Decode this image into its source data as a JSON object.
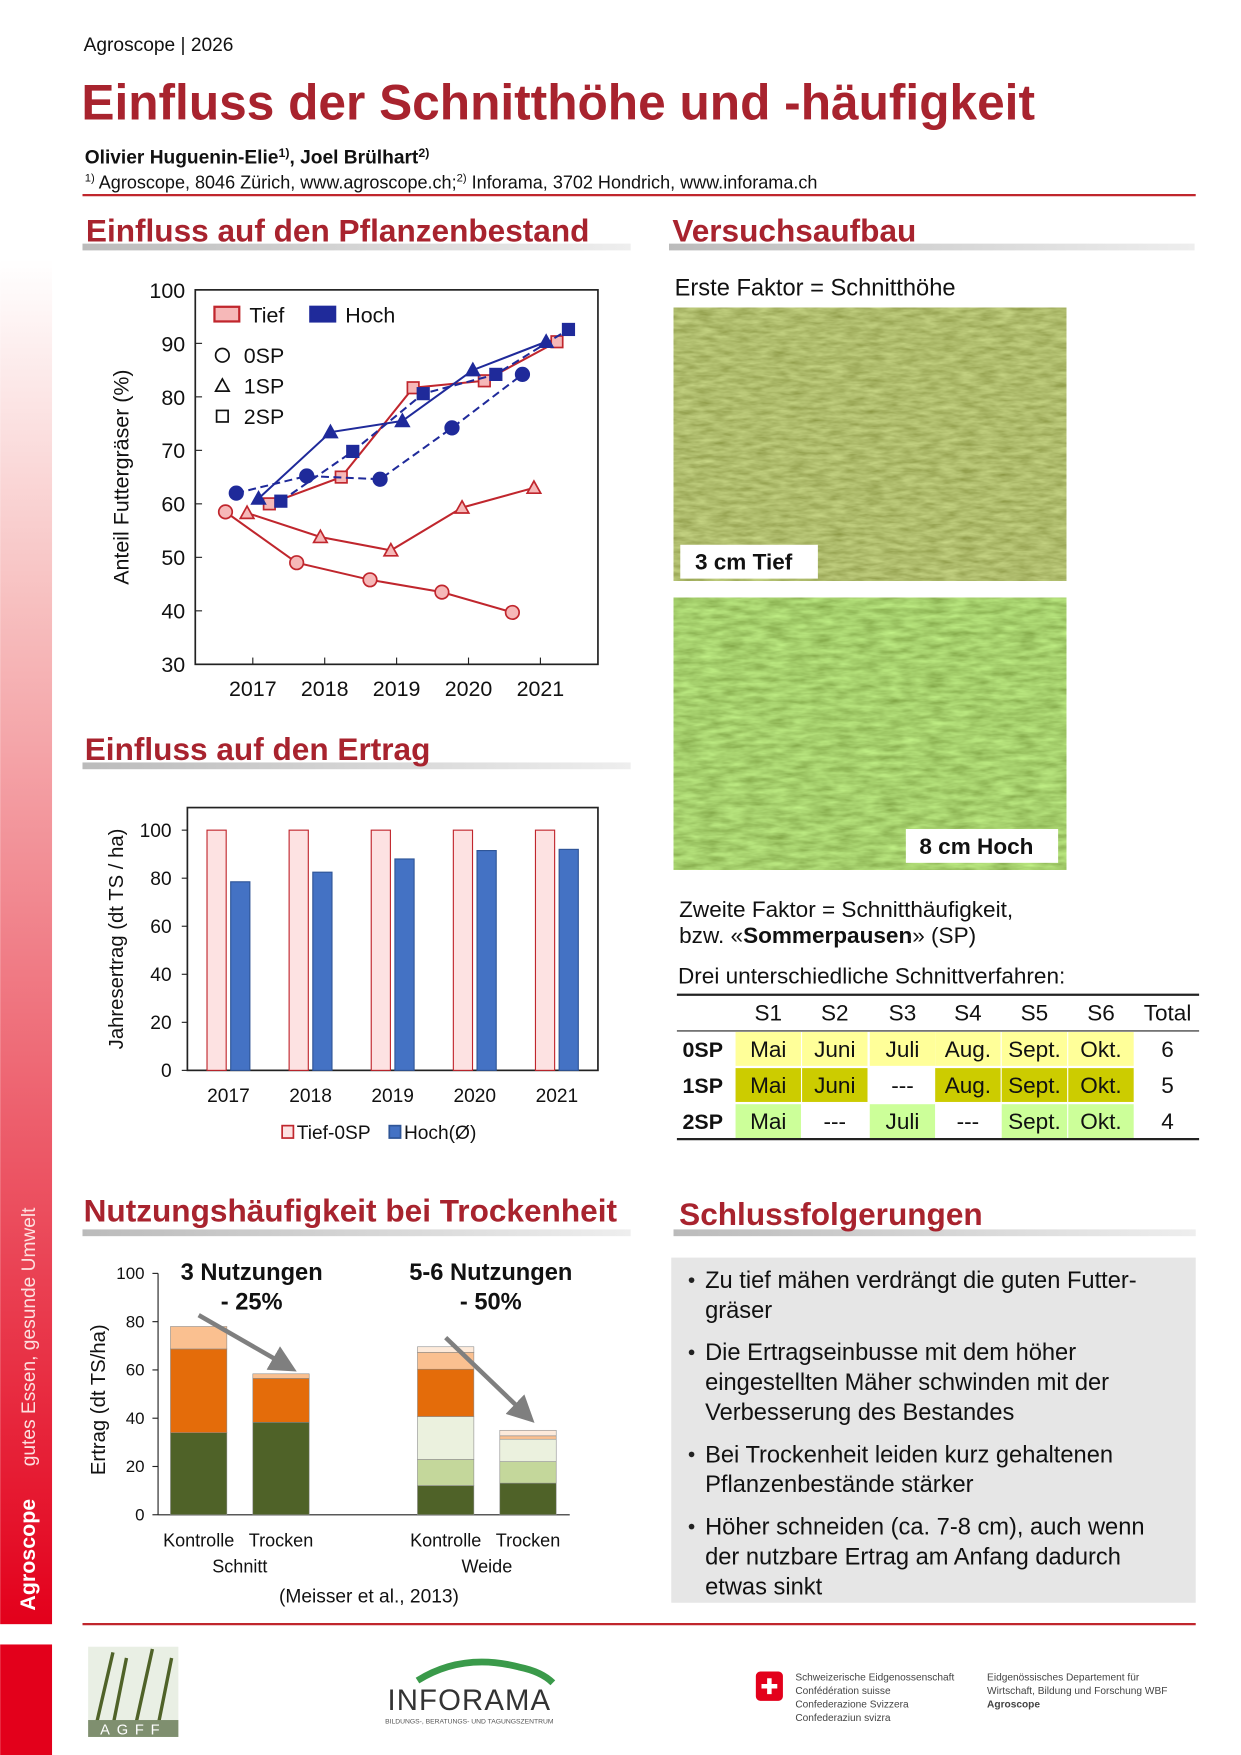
{
  "header": {
    "org": "Agroscope | 2026",
    "title": "Einfluss der Schnitthöhe und -häufigkeit",
    "authors": [
      {
        "name": "Olivier Huguenin-Elie",
        "sup": "1)"
      },
      {
        "name": ", Joel Brülhart",
        "sup": "2)"
      }
    ],
    "affiliations": [
      {
        "sup": "1)",
        "text": " Agroscope, 8046 Zürich, www.agroscope.ch;"
      },
      {
        "sup": "2)",
        "text": " Inforama, 3702 Hondrich, www.inforama.ch"
      }
    ]
  },
  "sections": {
    "stand": "Einfluss auf den Pflanzenbestand",
    "setup": "Versuchsaufbau",
    "yield": "Einfluss auf den Ertrag",
    "drought": "Nutzungshäufigkeit bei Trockenheit",
    "conclusions": "Schlussfolgerungen"
  },
  "setup": {
    "factor1": "Erste Faktor = Schnitthöhe",
    "photo1": "3 cm Tief",
    "photo2": "8 cm Hoch",
    "factor2": {
      "line1": "Zweite Faktor = Schnitthäufigkeit,",
      "pre": "bzw. «",
      "bold": "Sommerpausen",
      "post": "» (SP)"
    },
    "table_title": "Drei unterschiedliche Schnittverfahren:",
    "table": {
      "columns": [
        "S1",
        "S2",
        "S3",
        "S4",
        "S5",
        "S6",
        "Total"
      ],
      "rows": [
        {
          "label": "0SP",
          "cells": [
            "Mai",
            "Juni",
            "Juli",
            "Aug.",
            "Sept.",
            "Okt.",
            "6"
          ],
          "colors": [
            "#ffff99",
            "#ffff99",
            "#ffff99",
            "#ffff99",
            "#ffff99",
            "#ffff99",
            "#ffffff"
          ]
        },
        {
          "label": "1SP",
          "cells": [
            "Mai",
            "Juni",
            "---",
            "Aug.",
            "Sept.",
            "Okt.",
            "5"
          ],
          "colors": [
            "#cccc00",
            "#cccc00",
            "#ffffff",
            "#cccc00",
            "#cccc00",
            "#cccc00",
            "#ffffff"
          ]
        },
        {
          "label": "2SP",
          "cells": [
            "Mai",
            "---",
            "Juli",
            "---",
            "Sept.",
            "Okt.",
            "4"
          ],
          "colors": [
            "#ccff99",
            "#ffffff",
            "#ccff99",
            "#ffffff",
            "#ccff99",
            "#ccff99",
            "#ffffff"
          ]
        }
      ]
    }
  },
  "conclusions": [
    [
      "Zu tief mähen verdrängt die guten Futter-",
      "gräser"
    ],
    [
      "Die Ertragseinbusse mit dem höher",
      "eingestellten Mäher schwinden mit der",
      "Verbesserung des Bestandes"
    ],
    [
      "Bei Trockenheit leiden kurz gehaltenen",
      "Pflanzenbestände stärker"
    ],
    [
      "Höher schneiden (ca. 7-8 cm), auch wenn",
      "der nutzbare Ertrag am Anfang dadurch",
      "etwas sinkt"
    ]
  ],
  "side": {
    "brand": "Agroscope",
    "slogan": "gutes Essen, gesunde Umwelt"
  },
  "footer": {
    "agff": "AGFF",
    "inforama": "INFORAMA",
    "inforama_sub": "BILDUNGS-, BERATUNGS- UND TAGUNGSZENTRUM",
    "confed": [
      "Schweizerische Eidgenossenschaft",
      "Confédération suisse",
      "Confederazione Svizzera",
      "Confederaziun svizra"
    ],
    "dept": [
      "Eidgenössisches Departement für",
      "Wirtschaft, Bildung und Forschung WBF",
      "Agroscope"
    ]
  },
  "chart_data": [
    {
      "type": "line",
      "y_label": "Anteil Futtergräser (%)",
      "xlim": [
        2016.2,
        2021.8
      ],
      "xticks": [
        2017,
        2018,
        2019,
        2020,
        2021
      ],
      "ylim": [
        30,
        100
      ],
      "yticks": [
        30,
        40,
        50,
        60,
        70,
        80,
        90,
        100
      ],
      "markers": [
        {
          "name": "0SP",
          "shape": "circle"
        },
        {
          "name": "1SP",
          "shape": "triangle"
        },
        {
          "name": "2SP",
          "shape": "square"
        }
      ],
      "series": [
        {
          "name": "Tief",
          "color": "#c0262d",
          "fill": "#f6b8b8",
          "lines": [
            {
              "x": [
                2016.62,
                2017.61,
                2018.63,
                2019.63,
                2020.61
              ],
              "values": [
                58.5,
                49,
                45.8,
                43.5,
                39.7
              ],
              "dash": false
            },
            {
              "x": [
                2016.92,
                2017.94,
                2018.92,
                2019.91,
                2020.91
              ],
              "values": [
                58.3,
                53.8,
                51.3,
                59.3,
                63
              ],
              "dash": false
            },
            {
              "x": [
                2017.23,
                2018.23,
                2019.23,
                2020.22,
                2021.23
              ],
              "values": [
                60,
                65,
                81.7,
                83,
                90.3
              ],
              "dash": false
            }
          ]
        },
        {
          "name": "Hoch",
          "color": "#1f2a9a",
          "fill": "#1f2a9a",
          "lines": [
            {
              "x": [
                2016.77,
                2017.75,
                2018.77,
                2019.77,
                2020.75
              ],
              "values": [
                62,
                65.2,
                64.6,
                74.2,
                84.2
              ],
              "dash": true
            },
            {
              "x": [
                2017.08,
                2018.08,
                2019.08,
                2020.06,
                2021.08
              ],
              "values": [
                61,
                73.4,
                75.5,
                85,
                90.3
              ],
              "dash": false
            },
            {
              "x": [
                2017.39,
                2018.39,
                2019.37,
                2020.38,
                2021.39
              ],
              "values": [
                60.5,
                69.8,
                80.6,
                84.2,
                92.6
              ],
              "dash": true
            }
          ]
        }
      ]
    },
    {
      "type": "bar",
      "y_label": "Jahresertrag (dt TS / ha)",
      "categories": [
        "2017",
        "2018",
        "2019",
        "2020",
        "2021"
      ],
      "ylim": [
        0,
        109.4
      ],
      "yticks": [
        0,
        20,
        40,
        60,
        80,
        100
      ],
      "series": [
        {
          "name": "Tief-0SP",
          "color": "#c0262d",
          "fill": "#fde2e2",
          "values": [
            100,
            100,
            100,
            100,
            100
          ]
        },
        {
          "name": "Hoch(Ø)",
          "color": "#2f5597",
          "fill": "#4472c4",
          "values": [
            78.5,
            82.5,
            88,
            91.5,
            92
          ]
        }
      ]
    },
    {
      "type": "stacked_bar",
      "y_label": "Ertrag (dt TS/ha)",
      "categories": [
        "Kontrolle",
        "Trocken",
        "Kontrolle",
        "Trocken"
      ],
      "groups": [
        "Schnitt",
        "Weide"
      ],
      "ylim": [
        0,
        100
      ],
      "yticks": [
        0,
        20,
        40,
        60,
        80,
        100
      ],
      "annotations": [
        {
          "title": "3 Nutzungen",
          "change": "- 25%"
        },
        {
          "title": "5-6 Nutzungen",
          "change": "- 50%"
        }
      ],
      "series": [
        {
          "color": "#4f6228",
          "values": [
            34,
            38.3,
            12.1,
            13.1
          ]
        },
        {
          "color": "#c4d79b",
          "values": [
            0,
            0,
            10.8,
            8.9
          ]
        },
        {
          "color": "#ebf1de",
          "values": [
            0,
            0,
            17.8,
            9.3
          ]
        },
        {
          "color": "#e46c0a",
          "values": [
            34.7,
            18.2,
            19.6,
            0
          ]
        },
        {
          "color": "#fac090",
          "values": [
            9.3,
            1.9,
            7,
            1.4
          ]
        },
        {
          "color": "#fdeada",
          "values": [
            0,
            0,
            2.3,
            2.3
          ]
        }
      ],
      "source": "(Meisser et al., 2013)"
    }
  ]
}
